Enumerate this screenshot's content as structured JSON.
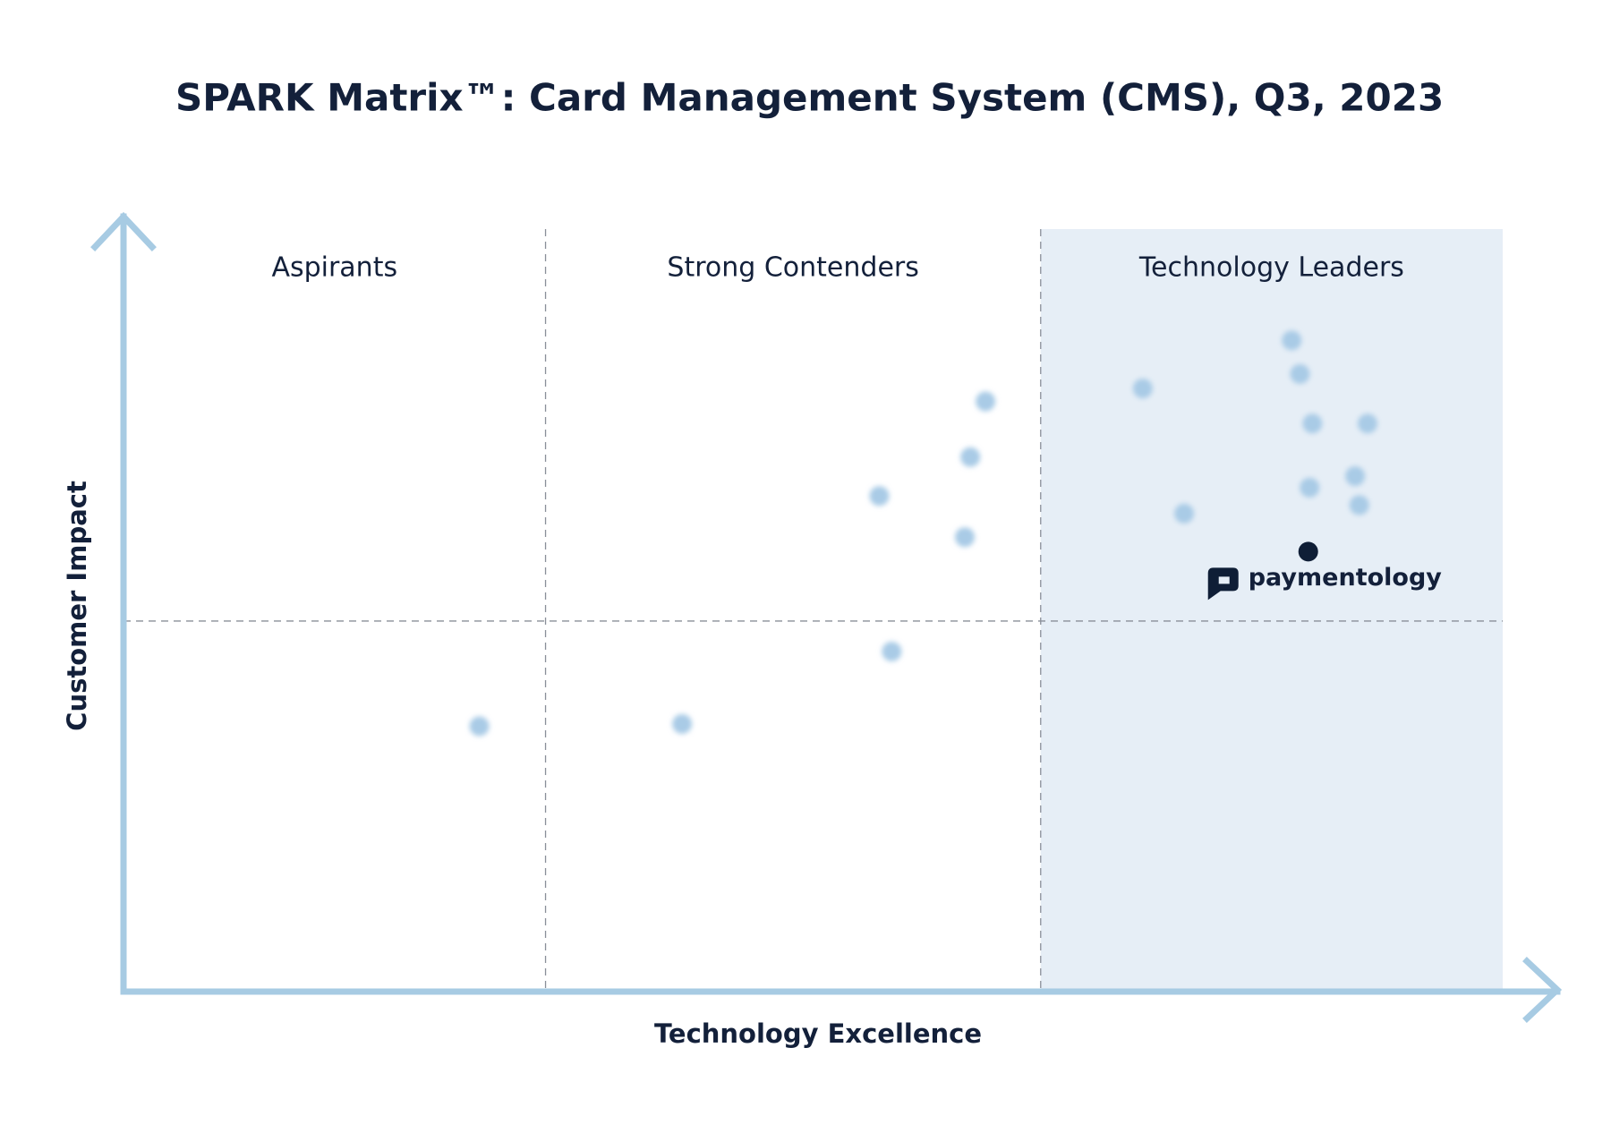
{
  "chart_data": {
    "type": "scatter",
    "title": "SPARK Matrix™: Card Management System (CMS), Q3, 2023",
    "x_label": "Technology Excellence",
    "y_label": "Customer Impact",
    "quadrant_labels": [
      "Aspirants",
      "Strong Contenders",
      "Technology Leaders"
    ],
    "xlim": [
      0,
      100
    ],
    "ylim": [
      0,
      100
    ],
    "dividers": {
      "x": [
        30.6,
        66.5
      ],
      "y": 48.6
    },
    "series": [
      {
        "color": "#a9cbe6",
        "x": [
          84.7,
          85.3,
          73.9,
          62.5,
          86.2,
          90.2,
          61.4,
          54.8,
          89.3,
          86.0,
          89.6,
          76.9,
          61.0,
          55.7,
          40.5,
          25.8
        ],
        "values": [
          85.4,
          81.0,
          79.1,
          77.4,
          74.5,
          74.5,
          70.1,
          65.0,
          67.6,
          66.1,
          63.8,
          62.7,
          59.6,
          44.6,
          35.1,
          34.8
        ]
      },
      {
        "name": "paymentology",
        "color": "#0f1e36",
        "x": [
          85.9
        ],
        "values": [
          57.7
        ]
      }
    ]
  }
}
